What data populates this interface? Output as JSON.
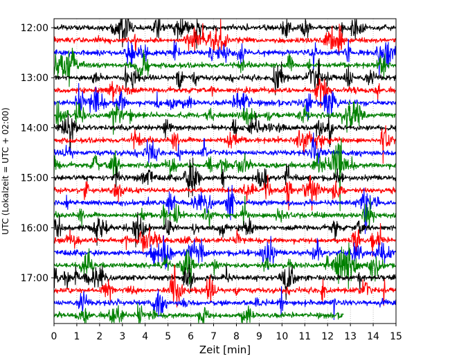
{
  "chart_data": {
    "type": "line",
    "title": "",
    "xlabel": "Zeit  [min]",
    "ylabel": "UTC (Lokalzeit = UTC + 02:00)",
    "xlim": [
      0,
      15
    ],
    "x_ticks": [
      0,
      1,
      2,
      3,
      4,
      5,
      6,
      7,
      8,
      9,
      10,
      11,
      12,
      13,
      14,
      15
    ],
    "x_tick_labels": [
      "0",
      "1",
      "2",
      "3",
      "4",
      "5",
      "6",
      "7",
      "8",
      "9",
      "10",
      "11",
      "12",
      "13",
      "14",
      "15"
    ],
    "y_tick_labels": [
      "12:00",
      "13:00",
      "14:00",
      "15:00",
      "16:00",
      "17:00"
    ],
    "y_ticks": [
      "12:00",
      "13:00",
      "14:00",
      "15:00",
      "16:00",
      "17:00"
    ],
    "trace_start": "12:00",
    "trace_interval_min": 15,
    "trace_count": 24,
    "trace_duration_min": 15,
    "last_trace_end_min": 12.7,
    "color_cycle": [
      "#000000",
      "#ff0000",
      "#0000ff",
      "#008000"
    ],
    "legend": "none",
    "grid": "vertical dotted lines at each minute",
    "series": [
      {
        "start_utc": "12:00",
        "color": "#000000",
        "x_range_min": [
          0,
          15
        ]
      },
      {
        "start_utc": "12:15",
        "color": "#ff0000",
        "x_range_min": [
          0,
          15
        ]
      },
      {
        "start_utc": "12:30",
        "color": "#0000ff",
        "x_range_min": [
          0,
          15
        ]
      },
      {
        "start_utc": "12:45",
        "color": "#008000",
        "x_range_min": [
          0,
          15
        ]
      },
      {
        "start_utc": "13:00",
        "color": "#000000",
        "x_range_min": [
          0,
          15
        ]
      },
      {
        "start_utc": "13:15",
        "color": "#ff0000",
        "x_range_min": [
          0,
          15
        ]
      },
      {
        "start_utc": "13:30",
        "color": "#0000ff",
        "x_range_min": [
          0,
          15
        ]
      },
      {
        "start_utc": "13:45",
        "color": "#008000",
        "x_range_min": [
          0,
          15
        ]
      },
      {
        "start_utc": "14:00",
        "color": "#000000",
        "x_range_min": [
          0,
          15
        ]
      },
      {
        "start_utc": "14:15",
        "color": "#ff0000",
        "x_range_min": [
          0,
          15
        ]
      },
      {
        "start_utc": "14:30",
        "color": "#0000ff",
        "x_range_min": [
          0,
          15
        ]
      },
      {
        "start_utc": "14:45",
        "color": "#008000",
        "x_range_min": [
          0,
          15
        ]
      },
      {
        "start_utc": "15:00",
        "color": "#000000",
        "x_range_min": [
          0,
          15
        ]
      },
      {
        "start_utc": "15:15",
        "color": "#ff0000",
        "x_range_min": [
          0,
          15
        ]
      },
      {
        "start_utc": "15:30",
        "color": "#0000ff",
        "x_range_min": [
          0,
          15
        ]
      },
      {
        "start_utc": "15:45",
        "color": "#008000",
        "x_range_min": [
          0,
          15
        ]
      },
      {
        "start_utc": "16:00",
        "color": "#000000",
        "x_range_min": [
          0,
          15
        ]
      },
      {
        "start_utc": "16:15",
        "color": "#ff0000",
        "x_range_min": [
          0,
          15
        ]
      },
      {
        "start_utc": "16:30",
        "color": "#0000ff",
        "x_range_min": [
          0,
          15
        ]
      },
      {
        "start_utc": "16:45",
        "color": "#008000",
        "x_range_min": [
          0,
          15
        ]
      },
      {
        "start_utc": "17:00",
        "color": "#000000",
        "x_range_min": [
          0,
          15
        ]
      },
      {
        "start_utc": "17:15",
        "color": "#ff0000",
        "x_range_min": [
          0,
          15
        ]
      },
      {
        "start_utc": "17:30",
        "color": "#0000ff",
        "x_range_min": [
          0,
          15
        ]
      },
      {
        "start_utc": "17:45",
        "color": "#008000",
        "x_range_min": [
          0,
          12.7
        ]
      }
    ]
  }
}
